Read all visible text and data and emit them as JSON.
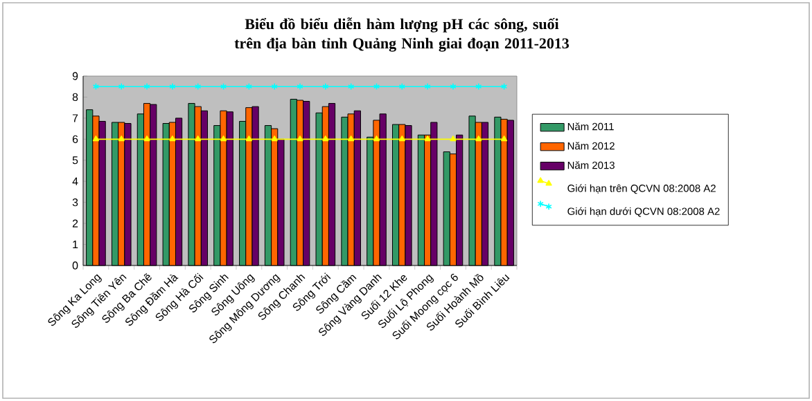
{
  "chart_data": {
    "type": "bar",
    "title": "Biểu đồ biểu diễn hàm lượng pH các sông, suối trên địa bàn tỉnh Quảng Ninh giai đoạn 2011-2013",
    "categories": [
      "Sông Ka Long",
      "Sông Tiên Yên",
      "Sông Ba Chẽ",
      "Sông Đầm Hà",
      "Sông Hà Cối",
      "Sông Sinh",
      "Sông Uông",
      "Sông Mông Dương",
      "Sông Chanh",
      "Sông Trới",
      "Sông Cầm",
      "Sông Vàng Danh",
      "Suối 12 Khe",
      "Suối Lộ Phong",
      "Suối Moong cọc 6",
      "Suối Hoành Mồ",
      "Suối Bình Liêu"
    ],
    "series": [
      {
        "name": "Năm 2011",
        "color": "#339966",
        "values": [
          7.4,
          6.8,
          7.2,
          6.75,
          7.7,
          6.65,
          6.85,
          6.65,
          7.9,
          7.25,
          7.05,
          6.1,
          6.7,
          6.2,
          5.4,
          7.1,
          7.05
        ]
      },
      {
        "name": "Năm 2012",
        "color": "#ff6600",
        "values": [
          7.1,
          6.8,
          7.7,
          6.8,
          7.55,
          7.35,
          7.5,
          6.5,
          7.85,
          7.55,
          7.2,
          6.9,
          6.7,
          6.2,
          5.3,
          6.8,
          6.95
        ]
      },
      {
        "name": "Năm 2013",
        "color": "#660066",
        "values": [
          6.85,
          6.75,
          7.65,
          7.0,
          7.35,
          7.3,
          7.55,
          6.0,
          7.8,
          7.7,
          7.35,
          7.2,
          6.65,
          6.8,
          6.2,
          6.8,
          6.9
        ]
      },
      {
        "name": "Giới hạn trên QCVN 08:2008 A2",
        "type": "line",
        "color": "#ffff00",
        "marker": "triangle",
        "values": [
          6,
          6,
          6,
          6,
          6,
          6,
          6,
          6,
          6,
          6,
          6,
          6,
          6,
          6,
          6,
          6,
          6
        ]
      },
      {
        "name": "Giới hạn dưới QCVN 08:2008 A2",
        "type": "line",
        "color": "#00ffff",
        "marker": "cross",
        "values": [
          8.5,
          8.5,
          8.5,
          8.5,
          8.5,
          8.5,
          8.5,
          8.5,
          8.5,
          8.5,
          8.5,
          8.5,
          8.5,
          8.5,
          8.5,
          8.5,
          8.5
        ]
      }
    ],
    "ylim": [
      0,
      9
    ],
    "yticks": [
      0,
      1,
      2,
      3,
      4,
      5,
      6,
      7,
      8,
      9
    ],
    "legend": "right"
  }
}
